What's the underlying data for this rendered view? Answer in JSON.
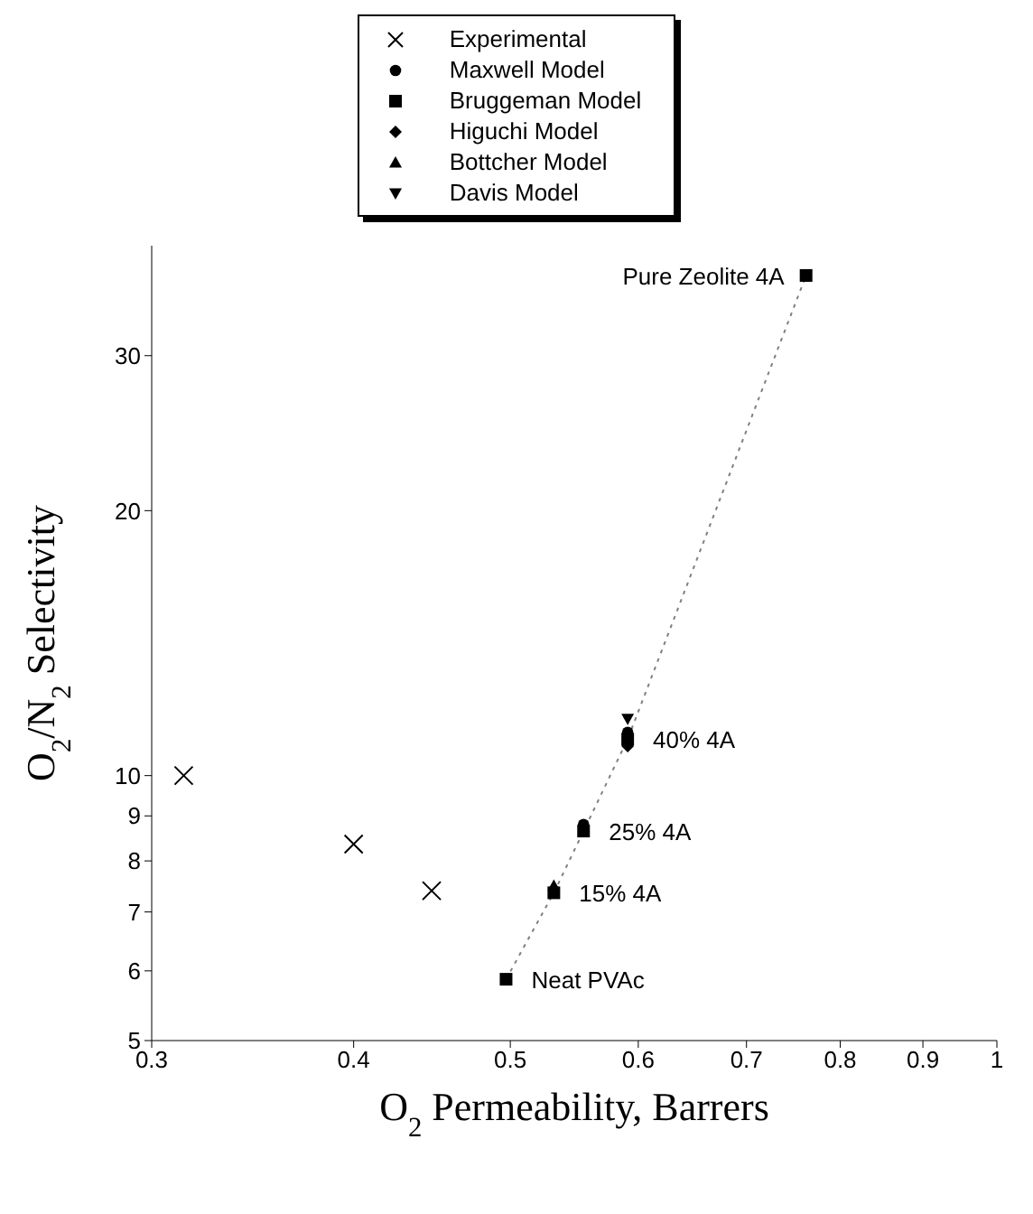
{
  "chart_data": {
    "type": "scatter",
    "xlabel": "O$_{2}$ Permeability, Barrers",
    "ylabel": "O$_{2}$/N$_{2}$ Selectivity",
    "log": "xy",
    "xlim": [
      0.3,
      1
    ],
    "xticks": [
      0.3,
      0.4,
      0.5,
      0.6,
      0.7,
      0.8,
      0.9,
      1
    ],
    "ylim": [
      5,
      40
    ],
    "yticks": [
      5,
      6,
      7,
      8,
      9,
      10,
      20,
      30
    ],
    "grid": false,
    "legend": "top",
    "series": [
      {
        "name": "Experimental",
        "color": "#000000",
        "marker": "cross",
        "x": [
          0.314,
          0.4,
          0.447
        ],
        "values": [
          10,
          8.36,
          7.4
        ]
      },
      {
        "name": "Maxwell Model",
        "color": "#000000",
        "marker": "circle",
        "x": [
          0.555,
          0.591
        ],
        "values": [
          8.8,
          11.2
        ]
      },
      {
        "name": "Bruggeman Model",
        "color": "#000000",
        "marker": "square",
        "x": [
          0.497,
          0.532,
          0.555,
          0.591,
          0.762
        ],
        "values": [
          5.87,
          7.36,
          8.65,
          11,
          37
        ]
      },
      {
        "name": "Higuchi Model",
        "color": "#000000",
        "marker": "diamond",
        "x": [
          0.591
        ],
        "values": [
          10.8
        ]
      },
      {
        "name": "Bottcher Model",
        "color": "#000000",
        "marker": "triangle",
        "x": [
          0.532
        ],
        "values": [
          7.5
        ]
      },
      {
        "name": "Davis Model",
        "color": "#000000",
        "marker": "triangle-down",
        "x": [
          0.591
        ],
        "values": [
          11.6
        ]
      },
      {
        "type": "line",
        "color": "#808080",
        "marker": "none",
        "line_style": "dotted",
        "x": [
          0.497,
          0.532,
          0.555,
          0.591,
          0.762
        ],
        "values": [
          5.87,
          7.36,
          8.65,
          11,
          37
        ]
      }
    ],
    "annotations": [
      {
        "text": "Pure Zeolite 4A",
        "x": 0.762,
        "y": 37
      },
      {
        "text": "40% 4A",
        "x": 0.591,
        "y": 11
      },
      {
        "text": "25% 4A",
        "x": 0.555,
        "y": 8.65
      },
      {
        "text": "15% 4A",
        "x": 0.532,
        "y": 7.36
      },
      {
        "text": "Neat PVAc",
        "x": 0.497,
        "y": 5.87
      }
    ]
  }
}
